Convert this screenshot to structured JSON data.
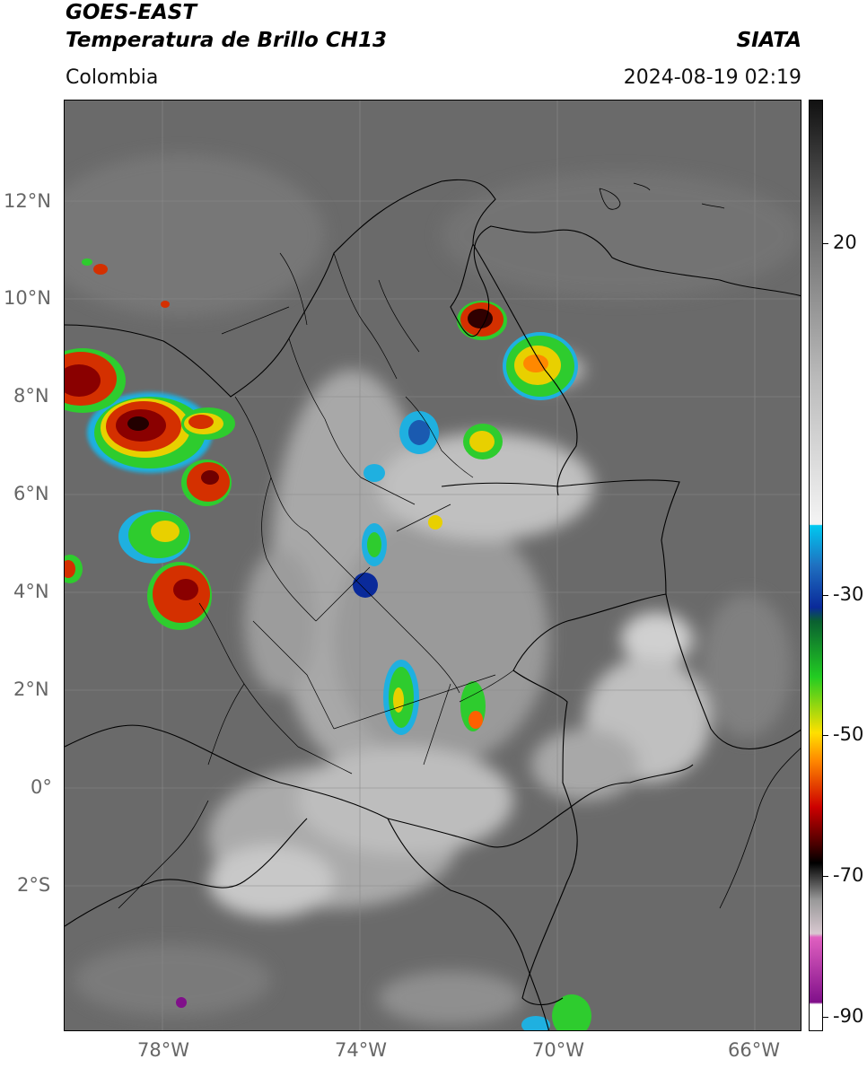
{
  "header": {
    "satellite": "GOES-EAST",
    "product": "Temperatura de Brillo CH13",
    "region": "Colombia",
    "organization": "SIATA",
    "timestamp": "2024-08-19 02:19"
  },
  "map": {
    "lat_labels": [
      "12°N",
      "10°N",
      "8°N",
      "6°N",
      "4°N",
      "2°N",
      "0°",
      "2°S"
    ],
    "lon_labels": [
      "78°W",
      "74°W",
      "70°W",
      "66°W"
    ],
    "extent": {
      "lon": [
        -80,
        -65
      ],
      "lat": [
        -5,
        14
      ]
    }
  },
  "colorbar": {
    "labels": [
      "20",
      "-30",
      "-50",
      "-70",
      "-90"
    ],
    "colors": {
      "warm_gray": "#6e6e6e",
      "white": "#f2f2f2",
      "cyan": "#00c8f0",
      "blue": "#0a2a9a",
      "green": "#22cc22",
      "yellow": "#ffe000",
      "orange": "#ff8800",
      "red": "#cc0000",
      "dark_red": "#4a0000",
      "black": "#000000",
      "pink": "#e060c0",
      "purple": "#80108a"
    }
  }
}
